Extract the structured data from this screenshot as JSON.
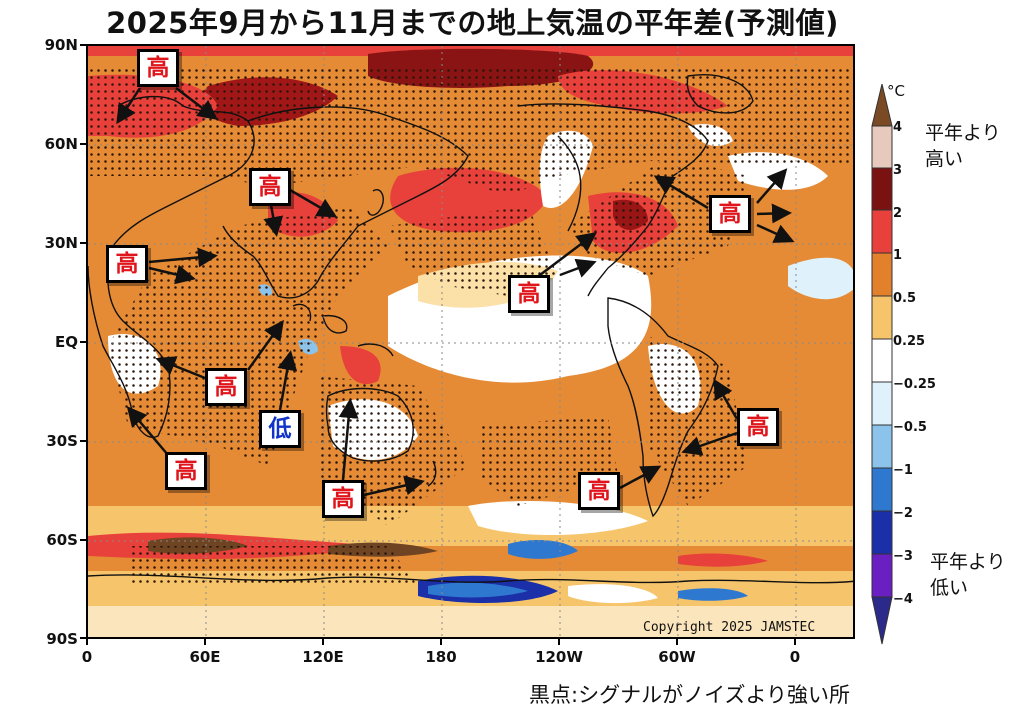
{
  "title": "2025年9月から11月までの地上気温の平年差(予測値)",
  "axes": {
    "lat_labels": [
      "90N",
      "60N",
      "30N",
      "EQ",
      "30S",
      "60S",
      "90S"
    ],
    "lon_labels": [
      "0",
      "60E",
      "120E",
      "180",
      "120W",
      "60W",
      "0"
    ]
  },
  "colorbar": {
    "unit": "°C",
    "labels": [
      "4",
      "3",
      "2",
      "1",
      "0.5",
      "0.25",
      "−0.25",
      "−0.5",
      "−1",
      "−2",
      "−3",
      "−4"
    ],
    "colors": [
      "#7a4a24",
      "#e8c9be",
      "#7a1212",
      "#e8403a",
      "#e3802c",
      "#f6c56b",
      "#ffffff",
      "#dff2fb",
      "#8bc3ea",
      "#2f78cf",
      "#1a2fa8",
      "#6a1fc2"
    ],
    "high_text": [
      "平年より",
      "高い"
    ],
    "low_text": [
      "平年より",
      "低い"
    ]
  },
  "callouts": {
    "high": "高",
    "low": "低"
  },
  "copyright": "Copyright 2025 JAMSTEC",
  "footer": "黒点:シグナルがノイズより強い所"
}
